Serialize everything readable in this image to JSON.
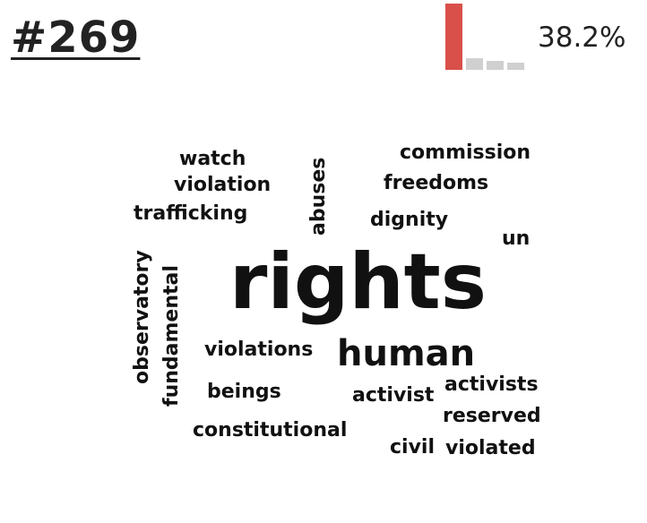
{
  "header": {
    "topic_id": "#269",
    "percent": "38.2%"
  },
  "mini_chart": {
    "values": [
      1.0,
      0.17,
      0.13,
      0.11
    ],
    "colors": [
      "#d9504a",
      "#d0d0d0",
      "#d0d0d0",
      "#d0d0d0"
    ]
  },
  "word_cloud": {
    "words": [
      "rights",
      "human",
      "watch",
      "violation",
      "trafficking",
      "abuses",
      "commission",
      "freedoms",
      "dignity",
      "un",
      "observatory",
      "fundamental",
      "violations",
      "beings",
      "constitutional",
      "activist",
      "activists",
      "reserved",
      "civil",
      "violated"
    ],
    "text_color": "#111111"
  }
}
